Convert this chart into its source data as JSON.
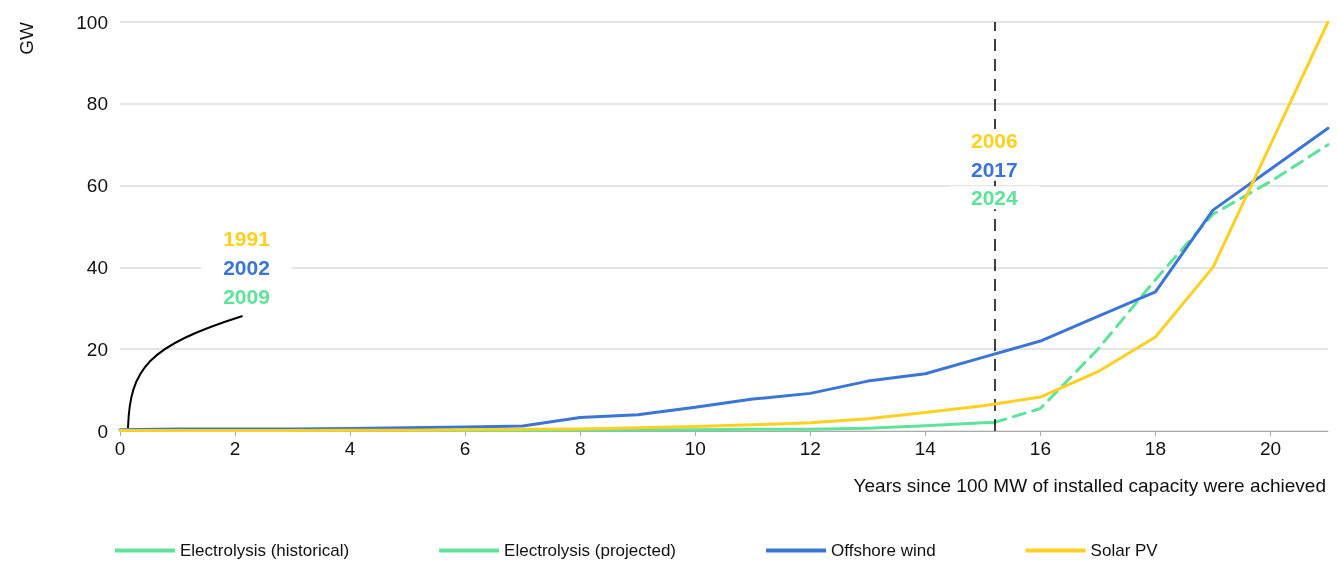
{
  "chart_data": {
    "type": "line",
    "ylabel": "GW",
    "xlabel": "Years since 100 MW of installed capacity were achieved",
    "xlim": [
      0,
      21
    ],
    "xticks": [
      0,
      2,
      4,
      6,
      8,
      10,
      12,
      14,
      16,
      18,
      20
    ],
    "ylim": [
      0,
      100
    ],
    "yticks": [
      0,
      20,
      40,
      60,
      80,
      100
    ],
    "grid": "y",
    "legend": "bottom",
    "marker": "none",
    "series": [
      {
        "name": "Electrolysis (historical)",
        "color": "#5fe39a",
        "line_style": "solid",
        "x": [
          5,
          6,
          7,
          8,
          9,
          10,
          11,
          12,
          13,
          14,
          15,
          15.2
        ],
        "values": [
          0.1,
          0.1,
          0.1,
          0.2,
          0.3,
          0.3,
          0.4,
          0.4,
          0.7,
          1.3,
          2,
          2.1
        ]
      },
      {
        "name": "Electrolysis (projected)",
        "color": "#5fe39a",
        "line_style": "dashed",
        "x": [
          15.2,
          16,
          17,
          18,
          19,
          20,
          21
        ],
        "values": [
          2.1,
          5.5,
          20,
          37,
          53,
          61,
          70
        ]
      },
      {
        "name": "Offshore wind",
        "color": "#3b76d6",
        "line_style": "solid",
        "x": [
          0,
          1,
          2,
          3,
          4,
          5,
          6,
          7,
          8,
          9,
          10,
          11,
          12,
          13,
          14,
          15,
          16,
          17,
          18,
          19,
          20,
          21
        ],
        "values": [
          0.3,
          0.5,
          0.5,
          0.5,
          0.6,
          0.8,
          1,
          1.2,
          3.3,
          4,
          5.8,
          7.8,
          9.2,
          12.2,
          14,
          18,
          22,
          28,
          34,
          54,
          64,
          74
        ]
      },
      {
        "name": "Solar PV",
        "color": "#fdd022",
        "line_style": "solid",
        "x": [
          0,
          1,
          2,
          3,
          4,
          5,
          6,
          7,
          8,
          9,
          10,
          11,
          12,
          13,
          14,
          15,
          16,
          17,
          18,
          19,
          20,
          21
        ],
        "values": [
          0.1,
          0.1,
          0.1,
          0.1,
          0.2,
          0.2,
          0.3,
          0.4,
          0.5,
          0.8,
          1.1,
          1.5,
          2,
          3,
          4.5,
          6.2,
          8.3,
          14.5,
          23,
          40,
          70,
          100
        ]
      }
    ],
    "ref_lines": [
      {
        "axis": "x",
        "value": 15.2,
        "color": "#000000",
        "line_style": "dashed"
      }
    ],
    "annotations": [
      "1991",
      "2002",
      {
        "text": "2009",
        "x": 0,
        "y": 0
      },
      "2006",
      "2017",
      "2024"
    ]
  }
}
